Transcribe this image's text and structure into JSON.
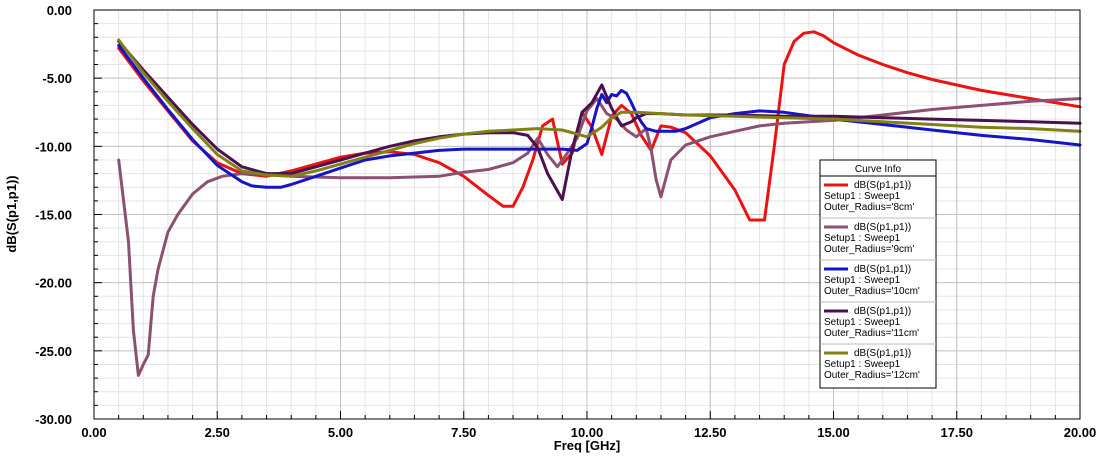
{
  "chart_data": {
    "type": "line",
    "xlabel": "Freq [GHz]",
    "ylabel": "dB(S(p1,p1))",
    "xlim": [
      0,
      20
    ],
    "ylim": [
      -30,
      0
    ],
    "x_ticks": [
      0,
      2.5,
      5,
      7.5,
      10,
      12.5,
      15,
      17.5,
      20
    ],
    "x_tick_labels": [
      "0.00",
      "2.50",
      "5.00",
      "7.50",
      "10.00",
      "12.50",
      "15.00",
      "17.50",
      "20.00"
    ],
    "y_ticks": [
      0,
      -5,
      -10,
      -15,
      -20,
      -25,
      -30
    ],
    "y_tick_labels": [
      "0.00",
      "-5.00",
      "-10.00",
      "-15.00",
      "-20.00",
      "-25.00",
      "-30.00"
    ],
    "grid": true,
    "legend": {
      "title": "Curve Info",
      "placement": "right",
      "entries": [
        {
          "lines": [
            "dB(S(p1,p1))",
            "Setup1 : Sweep1",
            "Outer_Radius='8cm'"
          ],
          "color": "#ee1111"
        },
        {
          "lines": [
            "dB(S(p1,p1))",
            "Setup1 : Sweep1",
            "Outer_Radius='9cm'"
          ],
          "color": "#8c5070"
        },
        {
          "lines": [
            "dB(S(p1,p1))",
            "Setup1 : Sweep1",
            "Outer_Radius='10cm'"
          ],
          "color": "#1414c8"
        },
        {
          "lines": [
            "dB(S(p1,p1))",
            "Setup1 : Sweep1",
            "Outer_Radius='11cm'"
          ],
          "color": "#4a1050"
        },
        {
          "lines": [
            "dB(S(p1,p1))",
            "Setup1 : Sweep1",
            "Outer_Radius='12cm'"
          ],
          "color": "#808014"
        }
      ]
    },
    "series": [
      {
        "color": "#ee1111",
        "x": [
          0.5,
          1.0,
          1.5,
          2.0,
          2.5,
          3.0,
          3.5,
          4.0,
          4.5,
          5.0,
          5.5,
          6.0,
          6.5,
          7.0,
          7.5,
          8.0,
          8.3,
          8.5,
          8.7,
          8.9,
          9.1,
          9.3,
          9.5,
          9.7,
          9.9,
          10.1,
          10.3,
          10.5,
          10.7,
          10.9,
          11.1,
          11.3,
          11.5,
          11.7,
          12.0,
          12.5,
          13.0,
          13.3,
          13.6,
          13.8,
          14.0,
          14.2,
          14.4,
          14.6,
          14.8,
          15.0,
          15.5,
          16.0,
          16.5,
          17.0,
          17.5,
          18.0,
          18.5,
          19.0,
          19.5,
          20.0
        ],
        "y": [
          -2.8,
          -5.2,
          -7.4,
          -9.6,
          -11.2,
          -12.0,
          -12.2,
          -11.8,
          -11.3,
          -10.8,
          -10.5,
          -10.4,
          -10.6,
          -11.2,
          -12.2,
          -13.6,
          -14.4,
          -14.4,
          -13.0,
          -11.0,
          -8.5,
          -8.0,
          -11.3,
          -10.5,
          -7.5,
          -8.6,
          -10.6,
          -7.8,
          -7.0,
          -7.6,
          -9.2,
          -10.3,
          -8.5,
          -8.6,
          -9.0,
          -10.7,
          -13.2,
          -15.4,
          -15.4,
          -10.0,
          -4.0,
          -2.3,
          -1.7,
          -1.6,
          -1.9,
          -2.4,
          -3.3,
          -4.0,
          -4.6,
          -5.1,
          -5.5,
          -5.9,
          -6.2,
          -6.5,
          -6.8,
          -7.1
        ]
      },
      {
        "color": "#8c5070",
        "x": [
          0.5,
          0.6,
          0.7,
          0.8,
          0.9,
          1.0,
          1.1,
          1.2,
          1.3,
          1.5,
          1.7,
          2.0,
          2.3,
          2.6,
          3.0,
          3.5,
          4.0,
          5.0,
          6.0,
          7.0,
          7.5,
          8.0,
          8.5,
          8.8,
          9.0,
          9.2,
          9.4,
          9.6,
          9.8,
          10.0,
          10.2,
          10.4,
          10.6,
          10.8,
          11.0,
          11.2,
          11.3,
          11.4,
          11.5,
          11.7,
          12.0,
          12.5,
          13.0,
          13.5,
          14.0,
          14.5,
          15.0,
          16.0,
          17.0,
          18.0,
          19.0,
          20.0
        ],
        "y": [
          -11.0,
          -14.0,
          -17.0,
          -23.5,
          -26.8,
          -26.0,
          -25.3,
          -21.0,
          -19.0,
          -16.3,
          -15.0,
          -13.5,
          -12.6,
          -12.2,
          -12.0,
          -12.0,
          -12.2,
          -12.3,
          -12.3,
          -12.2,
          -11.9,
          -11.7,
          -11.2,
          -10.5,
          -9.4,
          -10.6,
          -11.5,
          -10.5,
          -9.4,
          -7.4,
          -6.5,
          -7.6,
          -8.0,
          -8.8,
          -9.3,
          -8.7,
          -10.2,
          -12.4,
          -13.7,
          -11.0,
          -9.9,
          -9.3,
          -8.9,
          -8.5,
          -8.3,
          -8.2,
          -8.1,
          -7.7,
          -7.3,
          -7.0,
          -6.7,
          -6.5
        ]
      },
      {
        "color": "#1414c8",
        "x": [
          0.5,
          1.0,
          1.5,
          2.0,
          2.5,
          3.0,
          3.2,
          3.5,
          3.8,
          4.0,
          4.5,
          5.0,
          5.5,
          6.0,
          6.5,
          7.0,
          7.5,
          8.0,
          8.5,
          9.0,
          9.5,
          9.8,
          10.0,
          10.1,
          10.2,
          10.3,
          10.4,
          10.5,
          10.6,
          10.7,
          10.8,
          10.9,
          11.0,
          11.1,
          11.2,
          11.4,
          11.6,
          11.8,
          12.0,
          12.5,
          13.0,
          13.5,
          14.0,
          15.0,
          16.0,
          17.0,
          18.0,
          19.0,
          20.0
        ],
        "y": [
          -2.6,
          -5.0,
          -7.3,
          -9.5,
          -11.4,
          -12.6,
          -12.9,
          -13.0,
          -13.0,
          -12.8,
          -12.2,
          -11.6,
          -11.0,
          -10.7,
          -10.5,
          -10.3,
          -10.2,
          -10.2,
          -10.2,
          -10.2,
          -10.2,
          -10.3,
          -9.8,
          -8.6,
          -7.2,
          -6.2,
          -6.8,
          -6.2,
          -6.3,
          -5.9,
          -6.1,
          -6.8,
          -7.6,
          -8.2,
          -8.7,
          -8.9,
          -8.9,
          -8.9,
          -8.7,
          -7.9,
          -7.6,
          -7.4,
          -7.5,
          -8.0,
          -8.4,
          -8.8,
          -9.2,
          -9.5,
          -9.9
        ]
      },
      {
        "color": "#4a1050",
        "x": [
          0.5,
          1.0,
          1.5,
          2.0,
          2.5,
          3.0,
          3.5,
          4.0,
          4.5,
          5.0,
          5.5,
          6.0,
          6.5,
          7.0,
          7.5,
          8.0,
          8.5,
          8.8,
          9.0,
          9.2,
          9.5,
          9.7,
          9.9,
          10.1,
          10.3,
          10.5,
          10.7,
          10.9,
          11.0,
          11.2,
          11.5,
          12.0,
          13.0,
          14.0,
          15.0,
          16.0,
          17.0,
          18.0,
          19.0,
          20.0
        ],
        "y": [
          -2.3,
          -4.4,
          -6.4,
          -8.4,
          -10.2,
          -11.5,
          -12.0,
          -12.0,
          -11.5,
          -11.0,
          -10.5,
          -10.0,
          -9.6,
          -9.3,
          -9.1,
          -9.0,
          -9.0,
          -9.2,
          -10.1,
          -12.0,
          -13.9,
          -10.2,
          -7.5,
          -6.8,
          -5.5,
          -7.2,
          -8.5,
          -8.2,
          -7.9,
          -7.6,
          -7.6,
          -7.7,
          -7.7,
          -7.8,
          -7.8,
          -7.9,
          -8.0,
          -8.1,
          -8.2,
          -8.3
        ]
      },
      {
        "color": "#808014",
        "x": [
          0.5,
          1.0,
          1.5,
          2.0,
          2.5,
          3.0,
          3.5,
          4.0,
          4.5,
          5.0,
          5.5,
          6.0,
          6.5,
          7.0,
          7.5,
          8.0,
          8.5,
          9.0,
          9.5,
          10.0,
          10.3,
          10.5,
          10.7,
          11.0,
          11.5,
          12.0,
          13.0,
          14.0,
          15.0,
          16.0,
          17.0,
          18.0,
          19.0,
          20.0
        ],
        "y": [
          -2.2,
          -4.6,
          -6.7,
          -8.7,
          -10.6,
          -11.8,
          -12.1,
          -12.2,
          -11.8,
          -11.3,
          -10.8,
          -10.3,
          -9.8,
          -9.4,
          -9.1,
          -8.9,
          -8.8,
          -8.7,
          -8.8,
          -9.3,
          -8.6,
          -7.9,
          -7.5,
          -7.5,
          -7.6,
          -7.7,
          -7.8,
          -7.9,
          -8.0,
          -8.2,
          -8.4,
          -8.6,
          -8.7,
          -8.9
        ]
      }
    ]
  }
}
